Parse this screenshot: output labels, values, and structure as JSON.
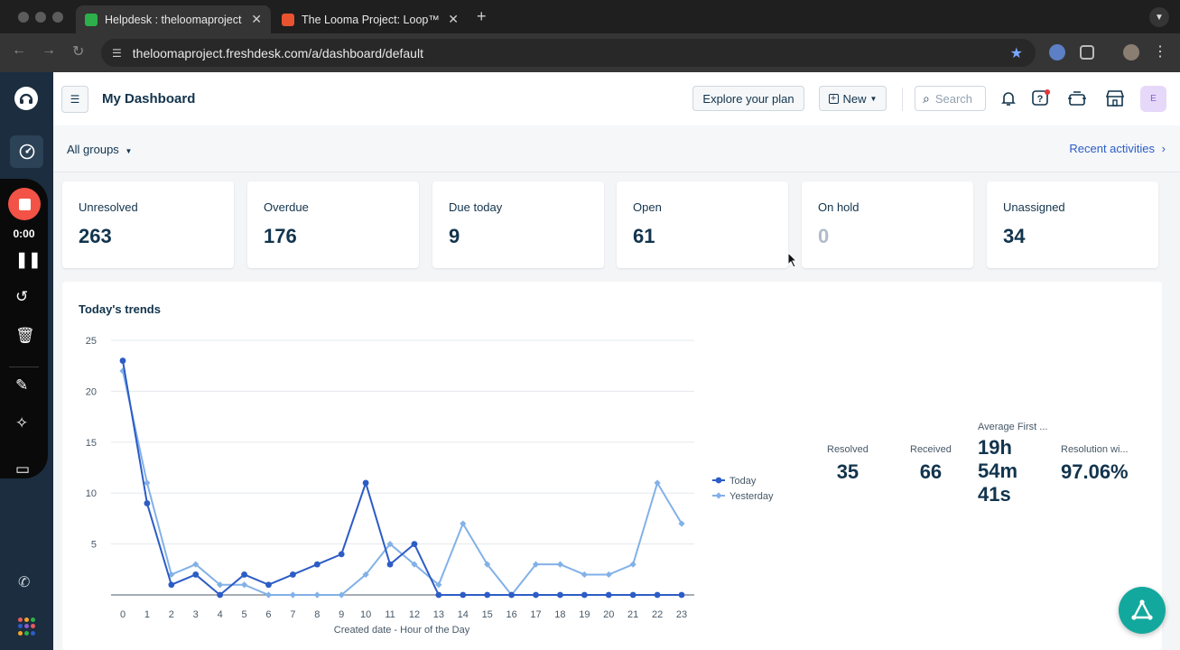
{
  "browser": {
    "tabs": [
      {
        "title": "Helpdesk : theloomaproject",
        "active": true
      },
      {
        "title": "The Looma Project: Loop™ Ta",
        "active": false
      }
    ],
    "url": "theloomaproject.freshdesk.com/a/dashboard/default"
  },
  "recorder": {
    "time": "0:00"
  },
  "header": {
    "title": "My Dashboard",
    "explore_label": "Explore your plan",
    "new_label": "New",
    "search_placeholder": "Search",
    "avatar_initial": "E"
  },
  "subbar": {
    "groups_label": "All groups",
    "recent_label": "Recent activities"
  },
  "cards": [
    {
      "label": "Unresolved",
      "value": "263"
    },
    {
      "label": "Overdue",
      "value": "176"
    },
    {
      "label": "Due today",
      "value": "9"
    },
    {
      "label": "Open",
      "value": "61"
    },
    {
      "label": "On hold",
      "value": "0"
    },
    {
      "label": "Unassigned",
      "value": "34"
    }
  ],
  "trends": {
    "title": "Today's trends",
    "stats": [
      {
        "label": "Resolved",
        "value": "35"
      },
      {
        "label": "Received",
        "value": "66"
      },
      {
        "label": "Average First ...",
        "value_lines": [
          "19h",
          "54m",
          "41s"
        ]
      },
      {
        "label": "Resolution wi...",
        "value": "97.06%"
      }
    ]
  },
  "colors": {
    "today": "#2c5cc5",
    "yesterday": "#82b1e8",
    "fab": "#13a89e"
  },
  "chart_data": {
    "type": "line",
    "xlabel": "Created date - Hour of the Day",
    "x": [
      0,
      1,
      2,
      3,
      4,
      5,
      6,
      7,
      8,
      9,
      10,
      11,
      12,
      13,
      14,
      15,
      16,
      17,
      18,
      19,
      20,
      21,
      22,
      23
    ],
    "yticks": [
      5,
      10,
      15,
      20,
      25
    ],
    "ylim": [
      0,
      25
    ],
    "legend_position": "right",
    "series": [
      {
        "name": "Today",
        "values": [
          23,
          9,
          1,
          2,
          0,
          2,
          1,
          2,
          3,
          4,
          11,
          3,
          5,
          0,
          0,
          0,
          0,
          0,
          0,
          0,
          0,
          0,
          0,
          0
        ]
      },
      {
        "name": "Yesterday",
        "values": [
          22,
          11,
          2,
          3,
          1,
          1,
          0,
          0,
          0,
          0,
          2,
          5,
          3,
          1,
          7,
          3,
          0,
          3,
          3,
          2,
          2,
          3,
          11,
          7
        ]
      }
    ]
  }
}
